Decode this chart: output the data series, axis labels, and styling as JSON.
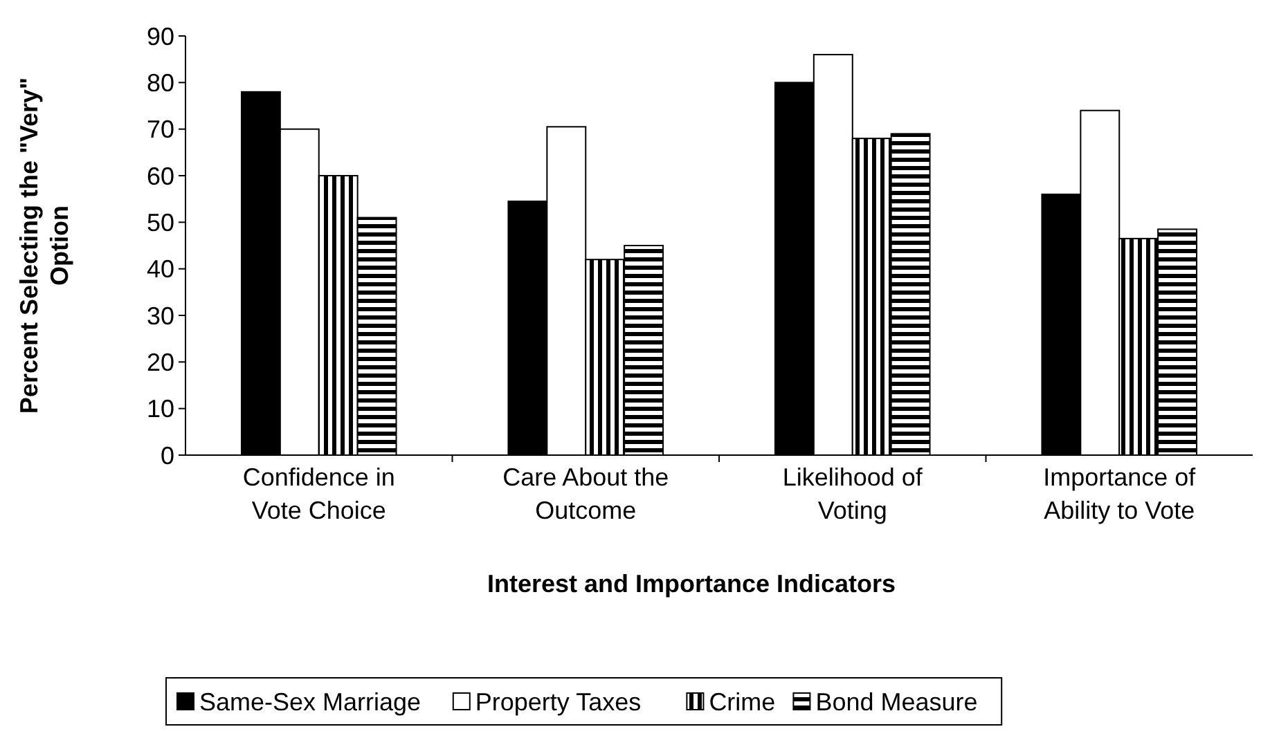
{
  "chart_data": {
    "type": "bar",
    "xlabel": "Interest and Importance Indicators",
    "ylabel": "Percent Selecting the \"Very\" Option",
    "categories": [
      "Confidence in Vote Choice",
      "Care About the Outcome",
      "Likelihood of Voting",
      "Importance of Ability to Vote"
    ],
    "series": [
      {
        "name": "Same-Sex Marriage",
        "color": "#000000",
        "values": [
          78,
          54.5,
          80,
          56
        ]
      },
      {
        "name": "Property Taxes",
        "color": "#ffffff",
        "values": [
          70,
          70.5,
          86,
          74
        ]
      },
      {
        "name": "Crime",
        "color": "#000000",
        "values": [
          60,
          42,
          68,
          46.5
        ]
      },
      {
        "name": "Bond Measure",
        "color": "#000000",
        "values": [
          51,
          45,
          69,
          48.5
        ]
      }
    ],
    "ylim": [
      0,
      90
    ],
    "yticks": [
      0,
      10,
      20,
      30,
      40,
      50,
      60,
      70,
      80,
      90
    ],
    "grid": false,
    "legend": "bottom"
  }
}
